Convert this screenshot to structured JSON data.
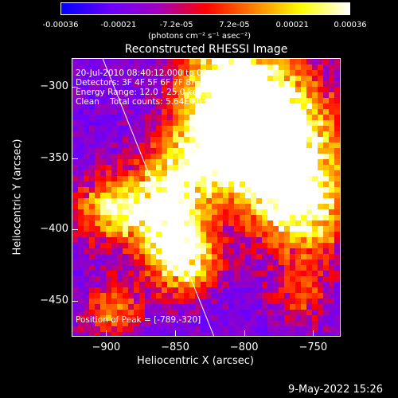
{
  "colorbar": {
    "ticks": [
      "-0.00036",
      "-0.00021",
      "-7.2e-05",
      "7.2e-05",
      "0.00021",
      "0.00036"
    ],
    "unit_label": "(photons cm⁻² s⁻¹ asec⁻²)",
    "colors": [
      "#0000ff",
      "#6a00ff",
      "#a000c0",
      "#ff0000",
      "#ff8000",
      "#ffff00",
      "#ffffff"
    ]
  },
  "chart_data": {
    "type": "heatmap",
    "title": "Reconstructed RHESSI Image",
    "xlabel": "Heliocentric X (arcsec)",
    "ylabel": "Heliocentric Y (arcsec)",
    "xlim": [
      -925,
      -730
    ],
    "ylim": [
      -475,
      -280
    ],
    "x_ticks": [
      -900,
      -850,
      -800,
      -750
    ],
    "y_ticks": [
      -300,
      -350,
      -400,
      -450
    ],
    "x_tick_labels": [
      "−900",
      "−850",
      "−800",
      "−750"
    ],
    "y_tick_labels": [
      "−300",
      "−350",
      "−400",
      "−450"
    ],
    "limb_line": [
      [
        -905,
        -275
      ],
      [
        -820,
        -480
      ]
    ],
    "peak": {
      "x": -789,
      "y": -320
    },
    "zrange": [
      -0.00036,
      0.00036
    ]
  },
  "info": {
    "time_range": "20-Jul-2010 08:40:12.000 to 08:45:56.000",
    "detectors": "Detectors: 3F 4F 5F 6F 7F 8F, Att 0",
    "energy": "Energy Range: 12.0 - 25.0 keV",
    "clean": "Clean    Total counts: 5.64E+03"
  },
  "peak_text": "Position of Peak = [-789,-320]",
  "footer_date": "9-May-2022 15:26"
}
